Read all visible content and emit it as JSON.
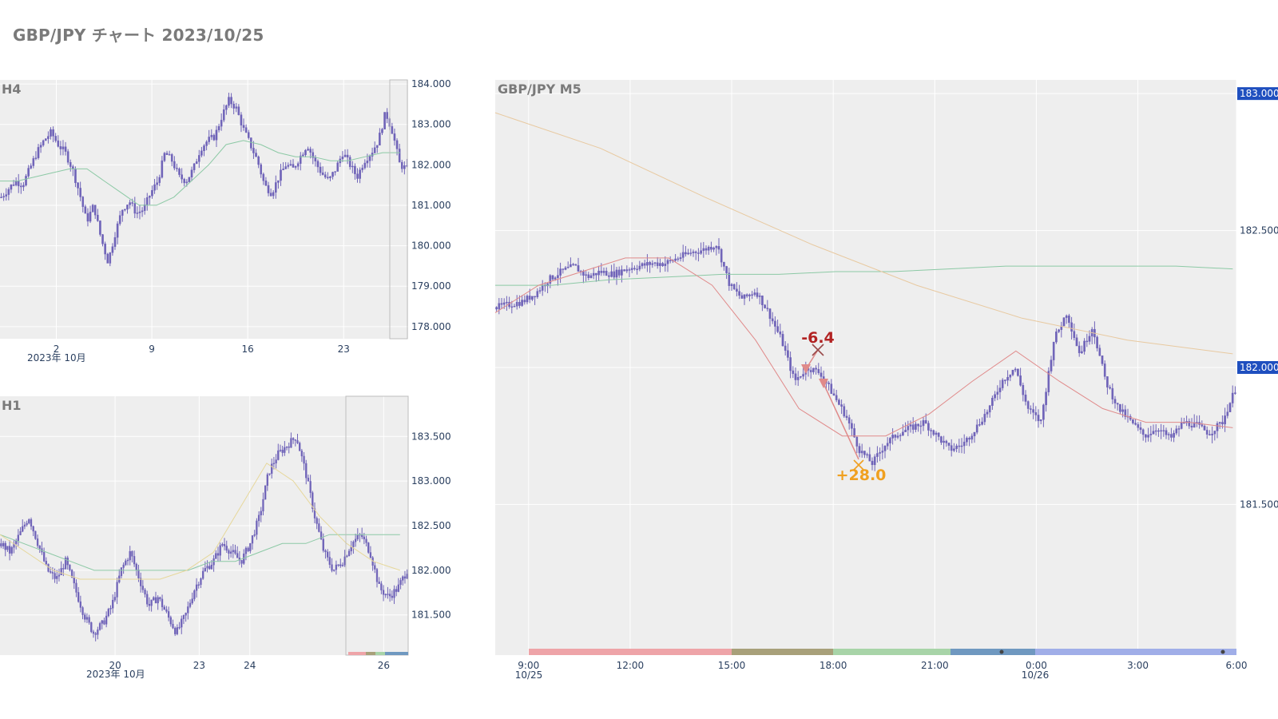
{
  "title": "GBP/JPY チャート 2023/10/25",
  "colors": {
    "plot_bg": "#eeeeee",
    "grid": "#ffffff",
    "candle": "#6f63b8",
    "ma_green": "#8cc9a5",
    "ma_orange": "#e8c9a0",
    "ma_red": "#e08a8a",
    "ma_yellow": "#e6d79a",
    "badge": "#1f4fbf",
    "loss": "#b22222",
    "win": "#f0a020",
    "session_bands": [
      "#eea4a8",
      "#a8a07a",
      "#a8d4a8",
      "#6f98c0",
      "#a0aee8"
    ]
  },
  "chart_data": [
    {
      "panel": "H4",
      "type": "candlestick",
      "label": "H4",
      "x_ticks": [
        "2",
        "9",
        "16",
        "23"
      ],
      "x_subtitle": "2023年 10月",
      "y_ticks": [
        "184.000",
        "183.000",
        "182.000",
        "181.000",
        "180.000",
        "179.000",
        "178.000"
      ],
      "ylim": [
        177.7,
        184.1
      ],
      "close_path": [
        181.2,
        181.4,
        181.6,
        181.5,
        181.9,
        182.3,
        182.6,
        182.8,
        182.5,
        182.3,
        181.9,
        181.3,
        180.6,
        181.0,
        180.2,
        179.6,
        180.3,
        180.9,
        181.1,
        180.8,
        180.9,
        181.3,
        181.6,
        182.3,
        182.1,
        181.7,
        181.6,
        181.9,
        182.4,
        182.6,
        182.7,
        183.2,
        183.6,
        183.4,
        182.9,
        182.5,
        182.1,
        181.5,
        181.3,
        181.7,
        182.0,
        181.9,
        182.2,
        182.5,
        182.1,
        181.8,
        181.6,
        181.9,
        182.3,
        182.0,
        181.7,
        182.1,
        182.3,
        182.6,
        183.3,
        182.8,
        182.0,
        181.9
      ],
      "series": [
        {
          "name": "",
          "role": "moving average",
          "values": [
            181.6,
            181.6,
            181.7,
            181.8,
            181.9,
            181.9,
            181.6,
            181.3,
            181.0,
            181.0,
            181.2,
            181.6,
            182.0,
            182.5,
            182.6,
            182.5,
            182.3,
            182.2,
            182.2,
            182.1,
            182.1,
            182.2,
            182.3,
            182.3
          ]
        }
      ]
    },
    {
      "panel": "H1",
      "type": "candlestick",
      "label": "H1",
      "x_ticks": [
        "20",
        "23",
        "24",
        "26"
      ],
      "x_subtitle": "2023年 10月",
      "y_ticks": [
        "183.500",
        "183.000",
        "182.500",
        "182.000",
        "181.500"
      ],
      "ylim": [
        181.05,
        183.95
      ],
      "close_path": [
        182.3,
        182.2,
        182.4,
        182.6,
        182.3,
        182.0,
        181.9,
        182.1,
        181.8,
        181.5,
        181.3,
        181.4,
        181.6,
        182.0,
        182.2,
        181.9,
        181.6,
        181.7,
        181.5,
        181.3,
        181.5,
        181.8,
        182.0,
        182.1,
        182.3,
        182.2,
        182.1,
        182.3,
        182.6,
        183.1,
        183.3,
        183.4,
        183.5,
        183.1,
        182.6,
        182.2,
        182.0,
        182.1,
        182.3,
        182.4,
        182.2,
        181.8,
        181.7,
        181.8,
        182.0
      ],
      "series": [
        {
          "name": "",
          "role": "moving average",
          "values": [
            182.4,
            182.3,
            182.2,
            182.1,
            182.0,
            182.0,
            182.0,
            182.0,
            182.0,
            182.1,
            182.1,
            182.2,
            182.3,
            182.3,
            182.4,
            182.4,
            182.4,
            182.4
          ]
        },
        {
          "name": "",
          "role": "moving average",
          "values": [
            182.4,
            182.2,
            182.0,
            181.9,
            181.9,
            181.9,
            181.9,
            182.0,
            182.2,
            182.7,
            183.2,
            183.0,
            182.6,
            182.3,
            182.1,
            182.0
          ]
        }
      ]
    },
    {
      "panel": "M5",
      "type": "candlestick",
      "label": "GBP/JPY M5",
      "x_ticks": [
        "9:00",
        "12:00",
        "15:00",
        "18:00",
        "21:00",
        "0:00",
        "3:00",
        "6:00"
      ],
      "x_date_labels": [
        "10/25",
        "10/26"
      ],
      "y_ticks": [
        "183.000",
        "182.500",
        "182.000",
        "181.500"
      ],
      "ylim": [
        180.95,
        183.05
      ],
      "highlighted_levels": [
        "183.000",
        "182.000"
      ],
      "close_path": [
        182.22,
        182.23,
        182.24,
        182.27,
        182.32,
        182.35,
        182.37,
        182.33,
        182.35,
        182.34,
        182.36,
        182.37,
        182.38,
        182.38,
        182.4,
        182.42,
        182.43,
        182.45,
        182.3,
        182.25,
        182.28,
        182.2,
        182.1,
        181.95,
        182.0,
        181.98,
        181.9,
        181.82,
        181.7,
        181.65,
        181.72,
        181.76,
        181.78,
        181.8,
        181.75,
        181.7,
        181.72,
        181.78,
        181.85,
        181.95,
        182.0,
        181.85,
        181.8,
        182.1,
        182.2,
        182.05,
        182.15,
        181.95,
        181.85,
        181.8,
        181.75,
        181.78,
        181.74,
        181.8,
        181.79,
        181.76,
        181.8,
        181.92
      ],
      "series": [
        {
          "name": "",
          "role": "moving average",
          "values": [
            182.3,
            182.3,
            182.32,
            182.33,
            182.34,
            182.34,
            182.35,
            182.35,
            182.36,
            182.37,
            182.37,
            182.37,
            182.37,
            182.36
          ]
        },
        {
          "name": "",
          "role": "moving average",
          "values": [
            182.93,
            182.8,
            182.62,
            182.45,
            182.3,
            182.18,
            182.1,
            182.05
          ]
        },
        {
          "name": "",
          "role": "moving average",
          "values": [
            182.2,
            182.3,
            182.35,
            182.4,
            182.4,
            182.3,
            182.1,
            181.85,
            181.75,
            181.75,
            181.83,
            181.95,
            182.06,
            181.95,
            181.85,
            181.8,
            181.8,
            181.78
          ]
        }
      ],
      "trades": [
        {
          "result": "-6.4"
        },
        {
          "result": "+28.0"
        }
      ]
    }
  ]
}
